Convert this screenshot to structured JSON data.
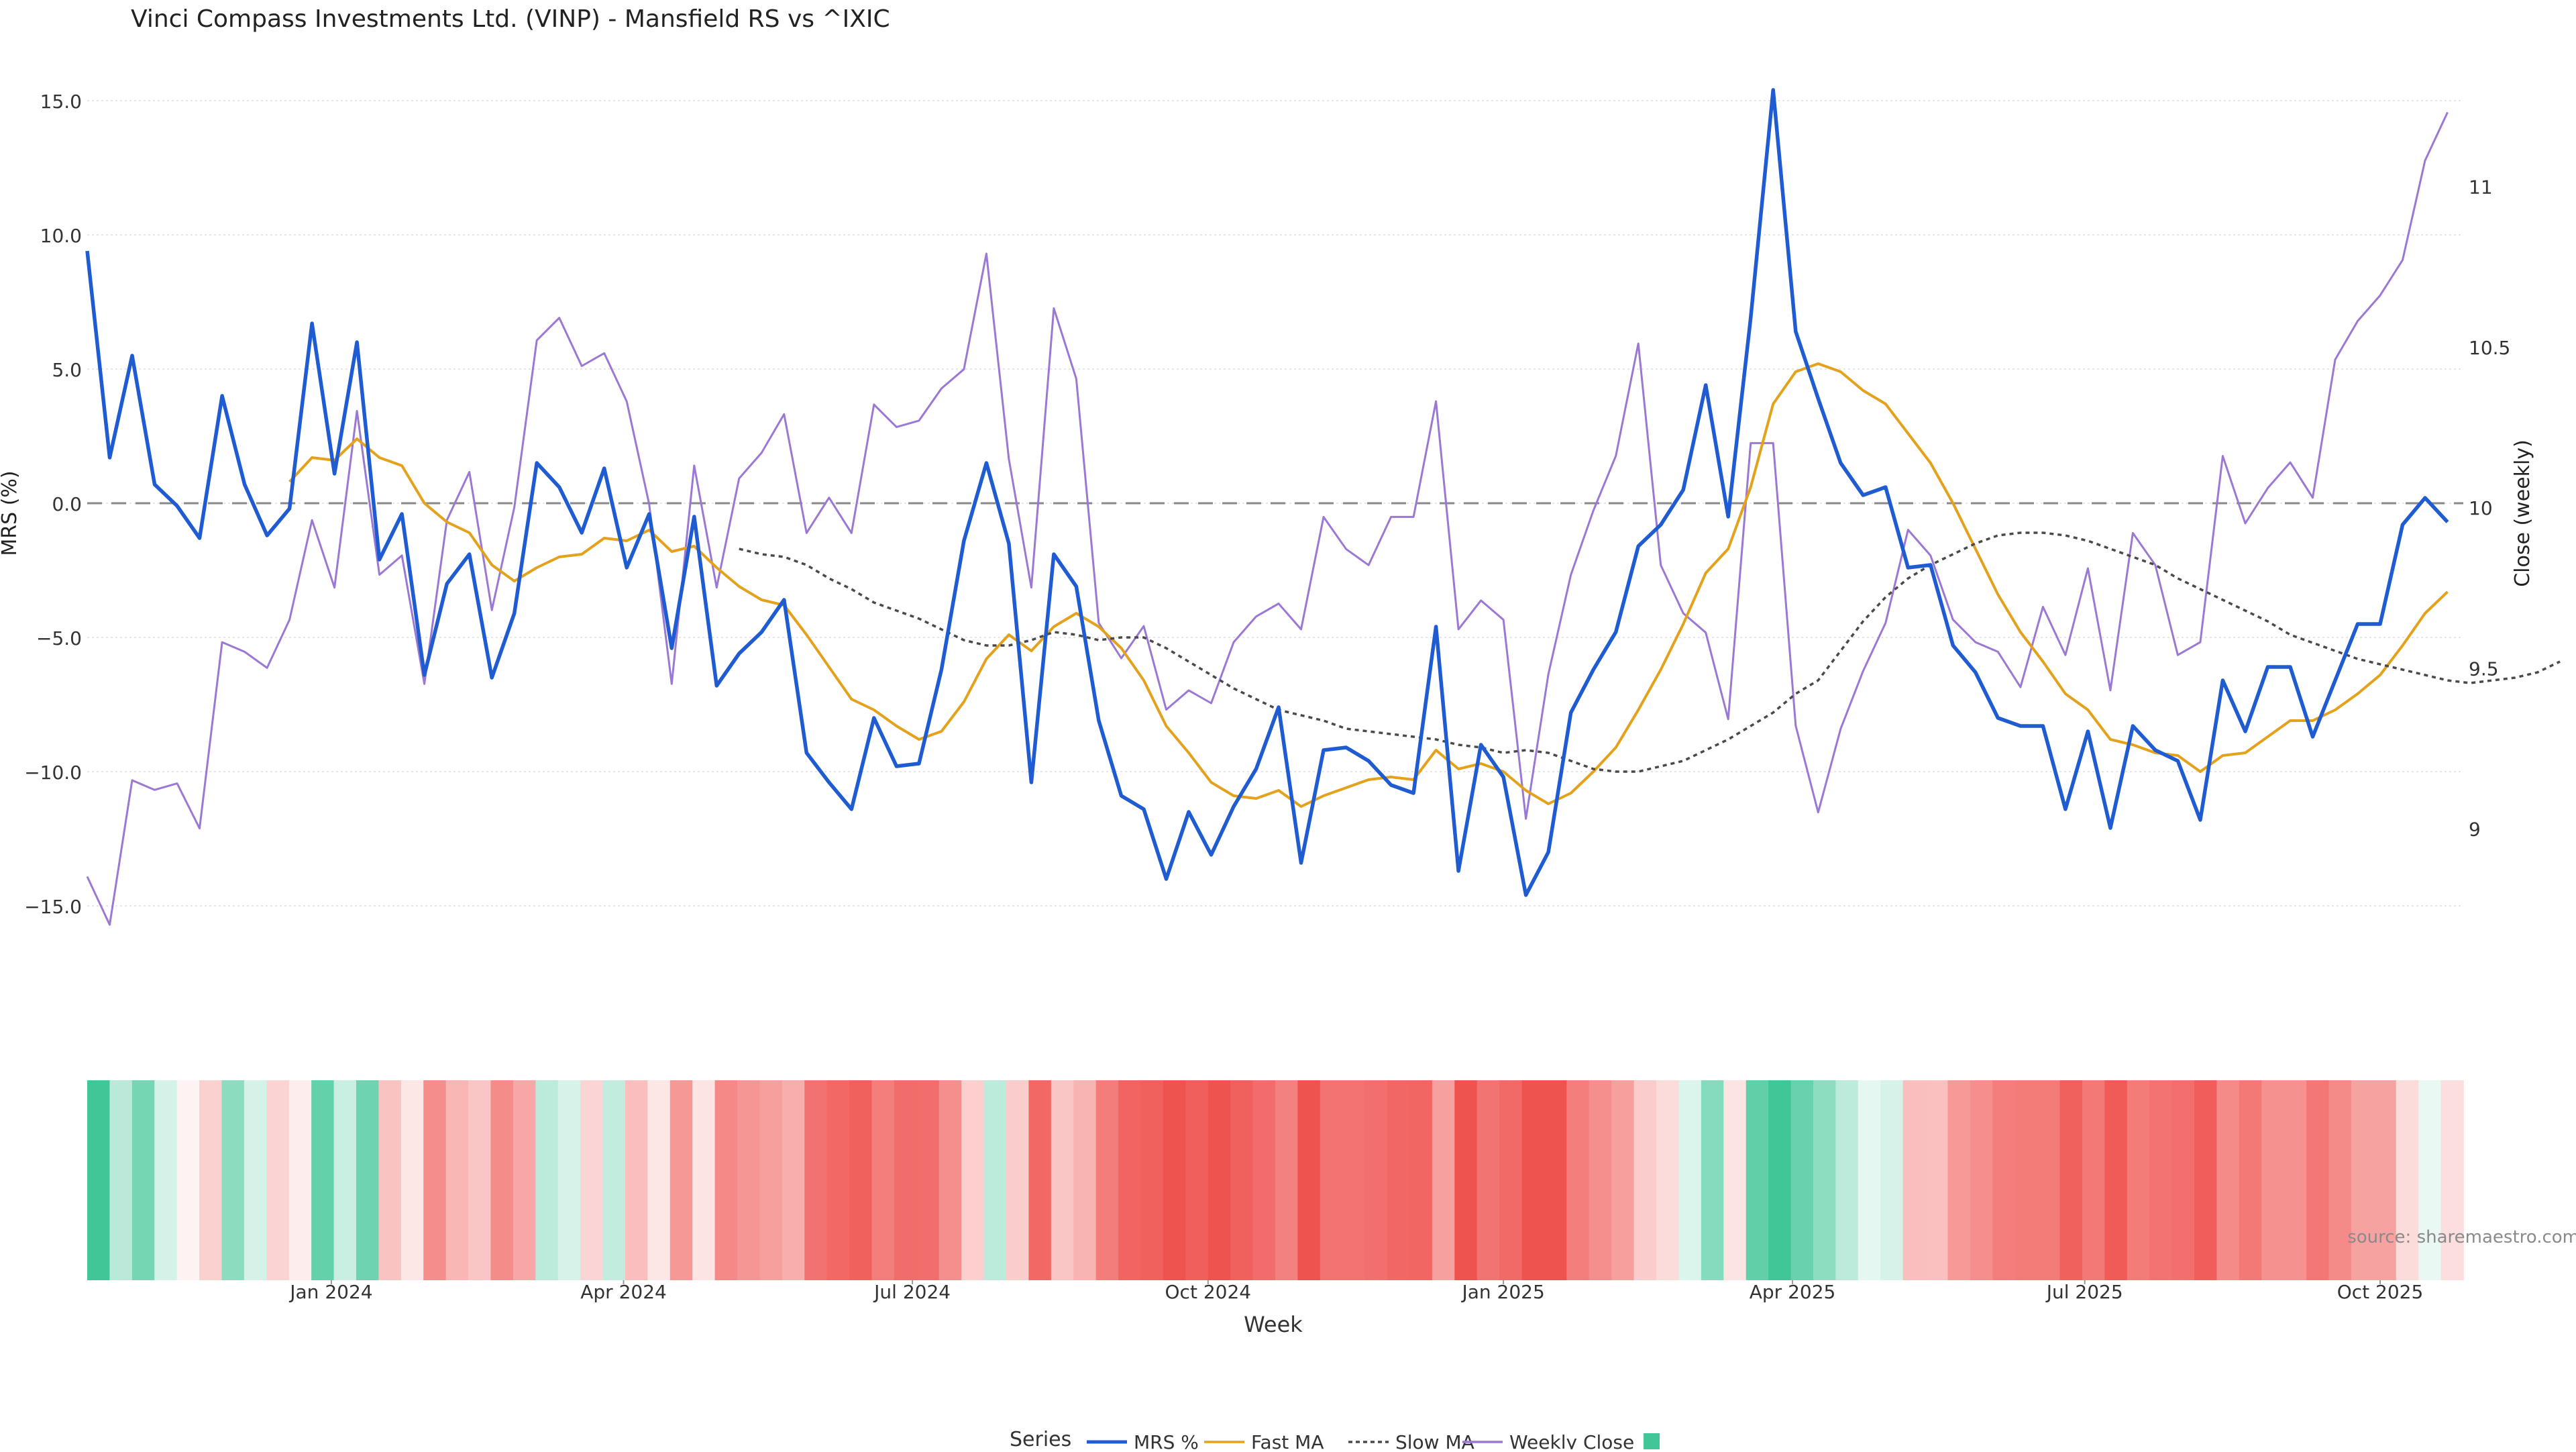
{
  "chart_data": {
    "type": "line",
    "title": "Vinci Compass Investments Ltd. (VINP) - Mansfield RS vs ^IXIC",
    "xlabel": "Week",
    "ylabel": "MRS (%)",
    "y2label": "Close (weekly)",
    "ylim": [
      -17.5,
      16.0
    ],
    "y2lim": [
      8.55,
      11.35
    ],
    "yticks": [
      15,
      10,
      5,
      0,
      -5,
      -10,
      -15
    ],
    "ytick_labels": [
      "15.0",
      "10.0",
      "5.0",
      "0.0",
      "−5.0",
      "−10.0",
      "−15.0"
    ],
    "y2ticks": [
      11,
      10.5,
      10,
      9.5,
      9
    ],
    "y2tick_labels": [
      "11",
      "10.5",
      "10",
      "9.5",
      "9"
    ],
    "xlim": [
      0,
      105.7
    ],
    "xticks": [
      {
        "label": "Jan 2024",
        "x": 10.86
      },
      {
        "label": "Apr 2024",
        "x": 23.86
      },
      {
        "label": "Jul 2024",
        "x": 36.71
      },
      {
        "label": "Oct 2024",
        "x": 49.86
      },
      {
        "label": "Jan 2025",
        "x": 63
      },
      {
        "label": "Apr 2025",
        "x": 75.86
      },
      {
        "label": "Jul 2025",
        "x": 88.86
      },
      {
        "label": "Oct 2025",
        "x": 102
      }
    ],
    "zero_line": 0,
    "grid": true,
    "legend_position": "bottom-center",
    "legend_title": "Series",
    "source_note": "source: sharemaestro.com",
    "series": [
      {
        "name": "MRS %",
        "color": "#1f5bd1",
        "style": "solid",
        "start_index": 0,
        "values": [
          9.4,
          1.7,
          5.5,
          0.7,
          -0.1,
          -1.3,
          4.0,
          0.7,
          -1.2,
          -0.2,
          6.7,
          1.1,
          6.0,
          -2.1,
          -0.4,
          -6.4,
          -3.0,
          -1.9,
          -6.5,
          -4.1,
          1.5,
          0.6,
          -1.1,
          1.3,
          -2.4,
          -0.4,
          -5.4,
          -0.5,
          -6.8,
          -5.6,
          -4.8,
          -3.6,
          -9.3,
          -10.4,
          -11.4,
          -8.0,
          -9.8,
          -9.7,
          -6.2,
          -1.4,
          1.5,
          -1.5,
          -10.4,
          -1.9,
          -3.1,
          -8.1,
          -10.9,
          -11.4,
          -14.0,
          -11.5,
          -13.1,
          -11.3,
          -9.9,
          -7.6,
          -13.4,
          -9.2,
          -9.1,
          -9.6,
          -10.5,
          -10.8,
          -4.6,
          -13.7,
          -9.0,
          -10.2,
          -14.6,
          -13.0,
          -7.8,
          -6.2,
          -4.8,
          -1.6,
          -0.8,
          0.5,
          4.4,
          -0.5,
          6.9,
          15.4,
          6.4,
          3.9,
          1.5,
          0.3,
          0.6,
          -2.4,
          -2.3,
          -5.3,
          -6.3,
          -8.0,
          -8.3,
          -8.3,
          -11.4,
          -8.5,
          -12.1,
          -8.3,
          -9.2,
          -9.6,
          -11.8,
          -6.6,
          -8.5,
          -6.1,
          -6.1,
          -8.7,
          -6.6,
          -4.5,
          -4.5,
          -0.8,
          0.2,
          -0.7
        ]
      },
      {
        "name": "Fast MA",
        "color": "#e4a11b",
        "style": "solid",
        "start_index": 9,
        "values": [
          0.8,
          1.7,
          1.6,
          2.4,
          1.7,
          1.4,
          0.0,
          -0.7,
          -1.1,
          -2.3,
          -2.9,
          -2.4,
          -2.0,
          -1.9,
          -1.3,
          -1.4,
          -1.0,
          -1.8,
          -1.6,
          -2.4,
          -3.1,
          -3.6,
          -3.8,
          -4.9,
          -6.1,
          -7.3,
          -7.7,
          -8.3,
          -8.8,
          -8.5,
          -7.4,
          -5.8,
          -4.9,
          -5.5,
          -4.6,
          -4.1,
          -4.6,
          -5.4,
          -6.6,
          -8.3,
          -9.3,
          -10.4,
          -10.9,
          -11.0,
          -10.7,
          -11.3,
          -10.9,
          -10.6,
          -10.3,
          -10.2,
          -10.3,
          -9.2,
          -9.9,
          -9.7,
          -10.0,
          -10.7,
          -11.2,
          -10.8,
          -10.0,
          -9.1,
          -7.7,
          -6.2,
          -4.5,
          -2.6,
          -1.7,
          0.6,
          3.7,
          4.9,
          5.2,
          4.9,
          4.2,
          3.7,
          2.6,
          1.5,
          0.0,
          -1.7,
          -3.4,
          -4.8,
          -5.9,
          -7.1,
          -7.7,
          -8.8,
          -9.0,
          -9.3,
          -9.4,
          -10.0,
          -9.4,
          -9.3,
          -8.7,
          -8.1,
          -8.1,
          -7.7,
          -7.1,
          -6.4,
          -5.3,
          -4.1,
          -3.3
        ]
      },
      {
        "name": "Slow MA",
        "color": "#4a4a4a",
        "style": "dotted",
        "start_index": 29,
        "values": [
          -1.7,
          -1.9,
          -2.0,
          -2.3,
          -2.8,
          -3.2,
          -3.7,
          -4.0,
          -4.3,
          -4.7,
          -5.1,
          -5.3,
          -5.3,
          -5.1,
          -4.8,
          -4.9,
          -5.1,
          -5.0,
          -5.0,
          -5.4,
          -5.9,
          -6.4,
          -6.9,
          -7.3,
          -7.7,
          -7.9,
          -8.1,
          -8.4,
          -8.5,
          -8.6,
          -8.7,
          -8.8,
          -9.0,
          -9.1,
          -9.3,
          -9.2,
          -9.3,
          -9.6,
          -9.9,
          -10.0,
          -10.0,
          -9.8,
          -9.6,
          -9.2,
          -8.8,
          -8.3,
          -7.8,
          -7.1,
          -6.6,
          -5.5,
          -4.4,
          -3.5,
          -2.8,
          -2.3,
          -1.9,
          -1.5,
          -1.2,
          -1.1,
          -1.1,
          -1.2,
          -1.4,
          -1.7,
          -2.0,
          -2.3,
          -2.8,
          -3.2,
          -3.6,
          -4.0,
          -4.4,
          -4.9,
          -5.2,
          -5.5,
          -5.8,
          -6.0,
          -6.2,
          -6.4,
          -6.6,
          -6.7,
          -6.6,
          -6.5,
          -6.3,
          -5.9
        ]
      },
      {
        "name": "Weekly Close",
        "color": "#9b78d4",
        "style": "solid",
        "axis": "right",
        "start_index": 0,
        "values": [
          8.85,
          8.7,
          9.15,
          9.12,
          9.14,
          9.0,
          9.58,
          9.55,
          9.5,
          9.65,
          9.96,
          9.75,
          10.3,
          9.79,
          9.85,
          9.45,
          9.96,
          10.11,
          9.68,
          10.0,
          10.52,
          10.59,
          10.44,
          10.48,
          10.33,
          10.01,
          9.45,
          10.13,
          9.75,
          10.09,
          10.17,
          10.29,
          9.92,
          10.03,
          9.92,
          10.32,
          10.25,
          10.27,
          10.37,
          10.43,
          10.79,
          10.15,
          9.75,
          10.62,
          10.4,
          9.64,
          9.53,
          9.63,
          9.37,
          9.43,
          9.39,
          9.58,
          9.66,
          9.7,
          9.62,
          9.97,
          9.87,
          9.82,
          9.97,
          9.97,
          10.33,
          9.62,
          9.71,
          9.65,
          9.03,
          9.48,
          9.79,
          9.99,
          10.16,
          10.51,
          9.82,
          9.67,
          9.61,
          9.34,
          10.2,
          10.2,
          9.32,
          9.05,
          9.31,
          9.49,
          9.64,
          9.93,
          9.85,
          9.65,
          9.58,
          9.55,
          9.44,
          9.69,
          9.54,
          9.81,
          9.43,
          9.92,
          9.82,
          9.54,
          9.58,
          10.16,
          9.95,
          10.06,
          10.14,
          10.03,
          10.46,
          10.58,
          10.66,
          10.77,
          11.08,
          11.23
        ]
      }
    ],
    "heatmap": {
      "description": "color strip of MRS % per week (green positive, red negative)",
      "source_series": "MRS %"
    }
  }
}
